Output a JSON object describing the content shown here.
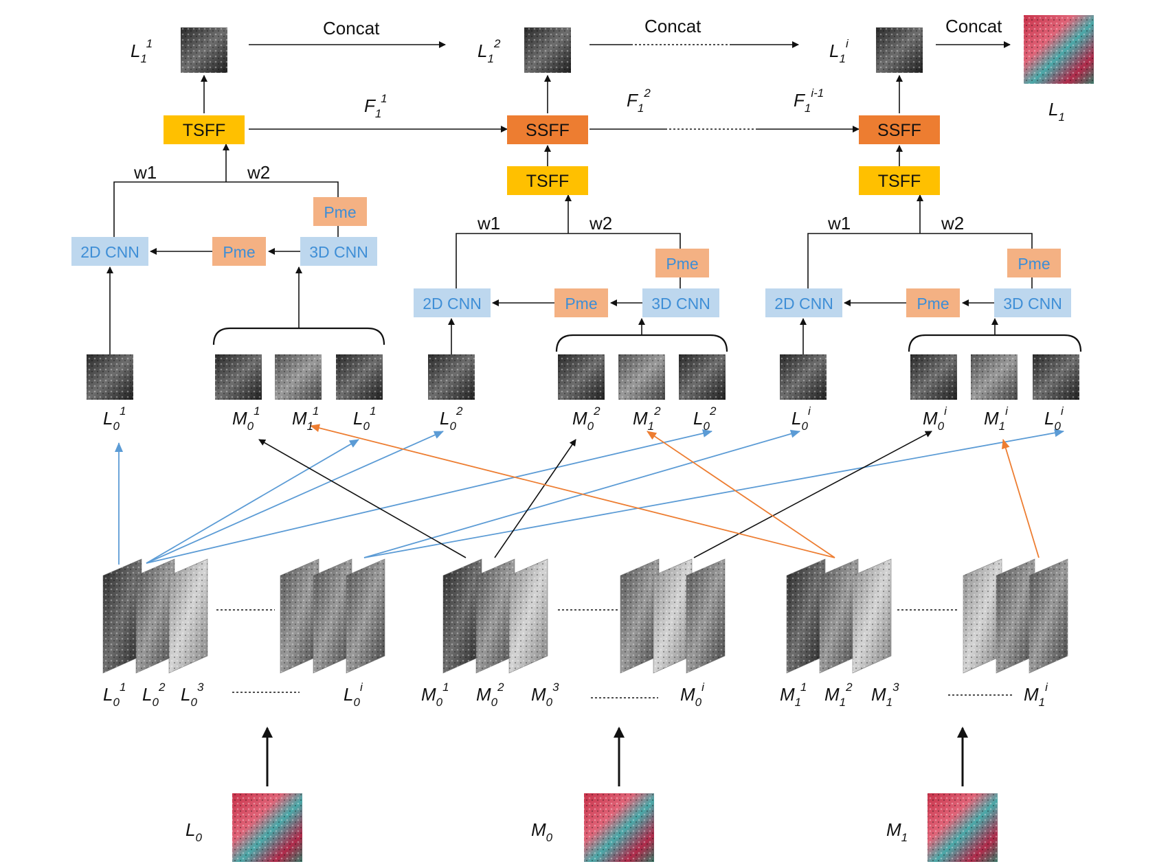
{
  "colors": {
    "tsff": "#ffc000",
    "ssff": "#ed7d31",
    "cnn_box": "#bdd7ee",
    "cnn_text": "#3e8ed6",
    "pme_box": "#f4b183",
    "arrow_black": "#111111",
    "arrow_blue": "#5b9bd5",
    "arrow_orange": "#ed7d31"
  },
  "flow": {
    "concat1": "Concat",
    "concat2": "Concat",
    "concat3": "Concat"
  },
  "outputs": {
    "out1": {
      "base": "L",
      "sub": "1",
      "sup": "1"
    },
    "out2": {
      "base": "L",
      "sub": "1",
      "sup": "2"
    },
    "outi": {
      "base": "L",
      "sub": "1",
      "sup": "i"
    },
    "final": {
      "base": "L",
      "sub": "1"
    }
  },
  "features": {
    "f1": {
      "base": "F",
      "sub": "1",
      "sup": "1"
    },
    "f2": {
      "base": "F",
      "sub": "1",
      "sup": "2"
    },
    "fi": {
      "base": "F",
      "sub": "1",
      "sup": "i-1"
    }
  },
  "boxes": {
    "tsff": "TSFF",
    "ssff": "SSFF",
    "cnn2d": "2D CNN",
    "cnn3d": "3D CNN",
    "pme": "Pme"
  },
  "weights": {
    "w1": "w1",
    "w2": "w2"
  },
  "branch_labels": [
    [
      {
        "base": "L",
        "sub": "0",
        "sup": "1"
      },
      {
        "base": "M",
        "sub": "0",
        "sup": "1"
      },
      {
        "base": "M",
        "sub": "1",
        "sup": "1"
      },
      {
        "base": "L",
        "sub": "0",
        "sup": "1"
      }
    ],
    [
      {
        "base": "L",
        "sub": "0",
        "sup": "2"
      },
      {
        "base": "M",
        "sub": "0",
        "sup": "2"
      },
      {
        "base": "M",
        "sub": "1",
        "sup": "2"
      },
      {
        "base": "L",
        "sub": "0",
        "sup": "2"
      }
    ],
    [
      {
        "base": "L",
        "sub": "0",
        "sup": "i"
      },
      {
        "base": "M",
        "sub": "0",
        "sup": "i"
      },
      {
        "base": "M",
        "sub": "1",
        "sup": "i"
      },
      {
        "base": "L",
        "sub": "0",
        "sup": "i"
      }
    ]
  ],
  "stack_labels": {
    "L0": [
      {
        "base": "L",
        "sub": "0",
        "sup": "1"
      },
      {
        "base": "L",
        "sub": "0",
        "sup": "2"
      },
      {
        "base": "L",
        "sub": "0",
        "sup": "3"
      },
      {
        "base": "L",
        "sub": "0",
        "sup": "i"
      }
    ],
    "M0": [
      {
        "base": "M",
        "sub": "0",
        "sup": "1"
      },
      {
        "base": "M",
        "sub": "0",
        "sup": "2"
      },
      {
        "base": "M",
        "sub": "0",
        "sup": "3"
      },
      {
        "base": "M",
        "sub": "0",
        "sup": "i"
      }
    ],
    "M1": [
      {
        "base": "M",
        "sub": "1",
        "sup": "1"
      },
      {
        "base": "M",
        "sub": "1",
        "sup": "2"
      },
      {
        "base": "M",
        "sub": "1",
        "sup": "3"
      },
      {
        "base": "M",
        "sub": "1",
        "sup": "i"
      }
    ]
  },
  "inputs": [
    {
      "base": "L",
      "sub": "0"
    },
    {
      "base": "M",
      "sub": "0"
    },
    {
      "base": "M",
      "sub": "1"
    }
  ]
}
